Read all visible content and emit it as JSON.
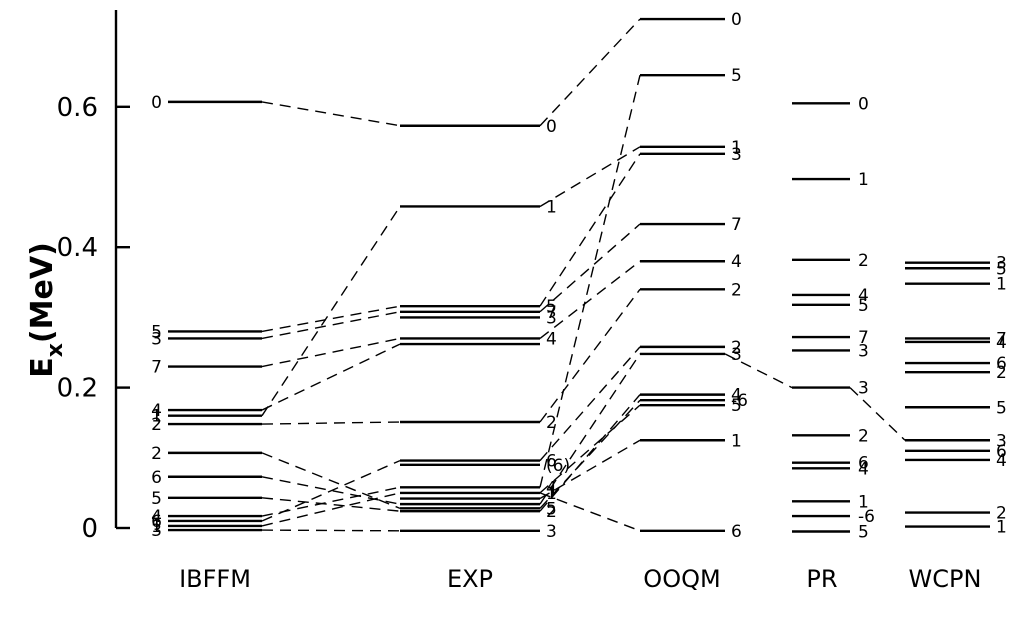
{
  "axis": {
    "title": "E",
    "title_sub": "x",
    "title_unit": "(MeV)",
    "ticks": [
      {
        "value": 0,
        "label": "0"
      },
      {
        "value": 0.2,
        "label": "0.2"
      },
      {
        "value": 0.4,
        "label": "0.4"
      },
      {
        "value": 0.6,
        "label": "0.6"
      }
    ],
    "range": [
      -0.07,
      0.735
    ]
  },
  "columns": [
    {
      "id": "ibffm",
      "label": "IBFFM",
      "levels": [
        {
          "e": 0.607,
          "label": "0"
        },
        {
          "e": 0.28,
          "label": "5"
        },
        {
          "e": 0.27,
          "label": "3"
        },
        {
          "e": 0.23,
          "label": "7"
        },
        {
          "e": 0.168,
          "label": "4"
        },
        {
          "e": 0.16,
          "label": "1"
        },
        {
          "e": 0.148,
          "label": "2"
        },
        {
          "e": 0.107,
          "label": "2"
        },
        {
          "e": 0.073,
          "label": "6"
        },
        {
          "e": 0.043,
          "label": "5"
        },
        {
          "e": 0.017,
          "label": "4"
        },
        {
          "e": 0.01,
          "label": "6"
        },
        {
          "e": 0.003,
          "label": "1"
        },
        {
          "e": -0.003,
          "label": "3"
        }
      ]
    },
    {
      "id": "exp",
      "label": "EXP",
      "levels": [
        {
          "e": 0.573,
          "label": "0"
        },
        {
          "e": 0.458,
          "label": "1"
        },
        {
          "e": 0.316,
          "label": "5"
        },
        {
          "e": 0.308,
          "label": "7"
        },
        {
          "e": 0.3,
          "label": "3"
        },
        {
          "e": 0.27,
          "label": "4"
        },
        {
          "e": 0.262,
          "label": ""
        },
        {
          "e": 0.151,
          "label": "2"
        },
        {
          "e": 0.096,
          "label": "6"
        },
        {
          "e": 0.09,
          "label": "(6)"
        },
        {
          "e": 0.058,
          "label": "4"
        },
        {
          "e": 0.05,
          "label": "1"
        },
        {
          "e": 0.042,
          "label": ""
        },
        {
          "e": 0.034,
          "label": ""
        },
        {
          "e": 0.028,
          "label": "5"
        },
        {
          "e": 0.024,
          "label": "2"
        },
        {
          "e": -0.004,
          "label": "3"
        }
      ]
    },
    {
      "id": "ooqm",
      "label": "OOQM",
      "levels": [
        {
          "e": 0.725,
          "label": "0"
        },
        {
          "e": 0.645,
          "label": "5"
        },
        {
          "e": 0.543,
          "label": "1"
        },
        {
          "e": 0.533,
          "label": "3"
        },
        {
          "e": 0.433,
          "label": "7"
        },
        {
          "e": 0.38,
          "label": "4"
        },
        {
          "e": 0.34,
          "label": "2"
        },
        {
          "e": 0.258,
          "label": "2"
        },
        {
          "e": 0.248,
          "label": "3"
        },
        {
          "e": 0.19,
          "label": "4"
        },
        {
          "e": 0.182,
          "label": "-6"
        },
        {
          "e": 0.175,
          "label": "5"
        },
        {
          "e": 0.125,
          "label": "1"
        },
        {
          "e": -0.004,
          "label": "6"
        }
      ]
    },
    {
      "id": "pr",
      "label": "PR",
      "levels": [
        {
          "e": 0.605,
          "label": "0"
        },
        {
          "e": 0.497,
          "label": "1"
        },
        {
          "e": 0.382,
          "label": "2"
        },
        {
          "e": 0.332,
          "label": "4"
        },
        {
          "e": 0.318,
          "label": "5"
        },
        {
          "e": 0.272,
          "label": "7"
        },
        {
          "e": 0.253,
          "label": "3"
        },
        {
          "e": 0.2,
          "label": "3"
        },
        {
          "e": 0.132,
          "label": "2"
        },
        {
          "e": 0.093,
          "label": "6"
        },
        {
          "e": 0.085,
          "label": "4"
        },
        {
          "e": 0.038,
          "label": "1"
        },
        {
          "e": 0.017,
          "label": "-6"
        },
        {
          "e": -0.005,
          "label": "5"
        }
      ]
    },
    {
      "id": "wcpn",
      "label": "WCPN",
      "levels": [
        {
          "e": 0.378,
          "label": "3"
        },
        {
          "e": 0.37,
          "label": "5"
        },
        {
          "e": 0.348,
          "label": "1"
        },
        {
          "e": 0.27,
          "label": "7"
        },
        {
          "e": 0.265,
          "label": "4"
        },
        {
          "e": 0.235,
          "label": "6"
        },
        {
          "e": 0.222,
          "label": "2"
        },
        {
          "e": 0.172,
          "label": "5"
        },
        {
          "e": 0.125,
          "label": "3"
        },
        {
          "e": 0.11,
          "label": "6"
        },
        {
          "e": 0.097,
          "label": "4"
        },
        {
          "e": 0.022,
          "label": "2"
        },
        {
          "e": 0.002,
          "label": "1"
        }
      ]
    }
  ],
  "connections": [
    {
      "from": "ibffm",
      "to": "exp",
      "e1": 0.607,
      "e2": 0.573
    },
    {
      "from": "ibffm",
      "to": "exp",
      "e1": 0.28,
      "e2": 0.316
    },
    {
      "from": "ibffm",
      "to": "exp",
      "e1": 0.27,
      "e2": 0.308
    },
    {
      "from": "ibffm",
      "to": "exp",
      "e1": 0.23,
      "e2": 0.27
    },
    {
      "from": "ibffm",
      "to": "exp",
      "e1": 0.16,
      "e2": 0.458
    },
    {
      "from": "ibffm",
      "to": "exp",
      "e1": 0.168,
      "e2": 0.262
    },
    {
      "from": "ibffm",
      "to": "exp",
      "e1": 0.148,
      "e2": 0.151
    },
    {
      "from": "ibffm",
      "to": "exp",
      "e1": 0.107,
      "e2": 0.028
    },
    {
      "from": "ibffm",
      "to": "exp",
      "e1": 0.073,
      "e2": 0.034
    },
    {
      "from": "ibffm",
      "to": "exp",
      "e1": 0.043,
      "e2": 0.024
    },
    {
      "from": "ibffm",
      "to": "exp",
      "e1": 0.017,
      "e2": 0.058
    },
    {
      "from": "ibffm",
      "to": "exp",
      "e1": 0.01,
      "e2": 0.096
    },
    {
      "from": "ibffm",
      "to": "exp",
      "e1": 0.003,
      "e2": 0.05
    },
    {
      "from": "ibffm",
      "to": "exp",
      "e1": -0.003,
      "e2": -0.004
    },
    {
      "from": "exp",
      "to": "ooqm",
      "e1": 0.573,
      "e2": 0.725
    },
    {
      "from": "exp",
      "to": "ooqm",
      "e1": 0.458,
      "e2": 0.543
    },
    {
      "from": "exp",
      "to": "ooqm",
      "e1": 0.316,
      "e2": 0.533
    },
    {
      "from": "exp",
      "to": "ooqm",
      "e1": 0.308,
      "e2": 0.433
    },
    {
      "from": "exp",
      "to": "ooqm",
      "e1": 0.27,
      "e2": 0.38
    },
    {
      "from": "exp",
      "to": "ooqm",
      "e1": 0.151,
      "e2": 0.34
    },
    {
      "from": "exp",
      "to": "ooqm",
      "e1": 0.096,
      "e2": 0.258
    },
    {
      "from": "exp",
      "to": "ooqm",
      "e1": 0.058,
      "e2": 0.645
    },
    {
      "from": "exp",
      "to": "ooqm",
      "e1": 0.05,
      "e2": 0.175
    },
    {
      "from": "exp",
      "to": "ooqm",
      "e1": 0.034,
      "e2": 0.248
    },
    {
      "from": "exp",
      "to": "ooqm",
      "e1": 0.028,
      "e2": 0.182
    },
    {
      "from": "exp",
      "to": "ooqm",
      "e1": 0.024,
      "e2": 0.19
    },
    {
      "from": "exp",
      "to": "ooqm",
      "e1": 0.042,
      "e2": 0.125
    },
    {
      "from": "exp",
      "to": "ooqm",
      "e1": 0.05,
      "e2": -0.004
    },
    {
      "from": "ooqm",
      "to": "pr",
      "e1": 0.248,
      "e2": 0.2
    },
    {
      "from": "pr",
      "to": "wcpn",
      "e1": 0.2,
      "e2": 0.125
    }
  ]
}
